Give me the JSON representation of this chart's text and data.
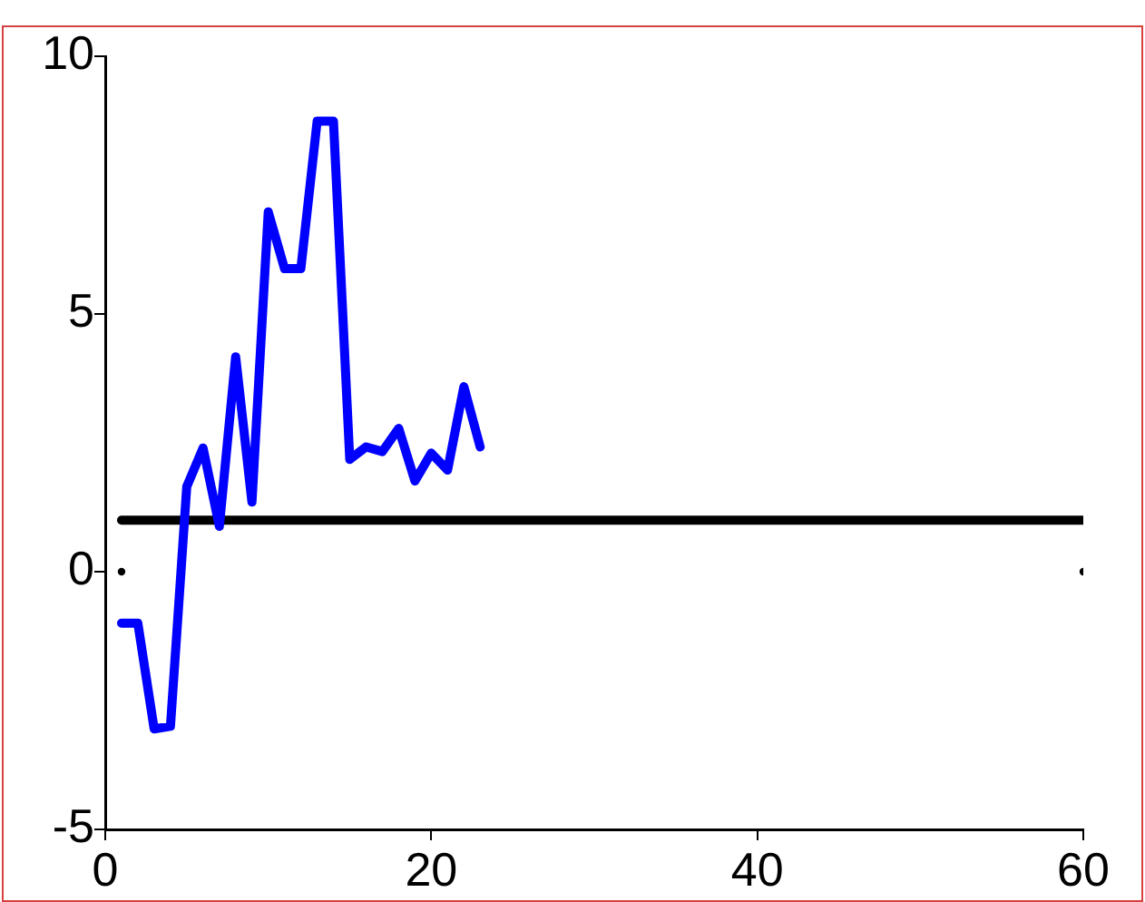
{
  "chart_data": {
    "type": "line",
    "xlim": [
      0,
      60
    ],
    "ylim": [
      -5,
      10
    ],
    "xticks": [
      0,
      20,
      40,
      60
    ],
    "yticks": [
      -5,
      0,
      5,
      10
    ],
    "grid": false,
    "legend": false,
    "line_style": "solid",
    "series": [
      {
        "color": "#0000ff",
        "x": [
          1,
          2,
          3,
          4,
          5,
          6,
          7,
          8,
          9,
          10,
          11,
          12,
          13,
          14,
          15,
          16,
          17,
          18,
          19,
          20,
          21,
          22,
          23
        ],
        "values": [
          -1.0,
          -1.0,
          -3.05,
          -3.0,
          1.65,
          2.4,
          0.88,
          4.17,
          1.35,
          6.98,
          5.88,
          5.88,
          8.74,
          8.74,
          2.18,
          2.42,
          2.33,
          2.78,
          1.76,
          2.3,
          1.97,
          3.59,
          2.42
        ]
      },
      {
        "color": "#000000",
        "x": [
          1,
          60
        ],
        "values": [
          1,
          1
        ]
      },
      {
        "type": "scatter",
        "color": "#000000",
        "x": [
          1,
          60
        ],
        "values": [
          0,
          0
        ]
      }
    ]
  }
}
